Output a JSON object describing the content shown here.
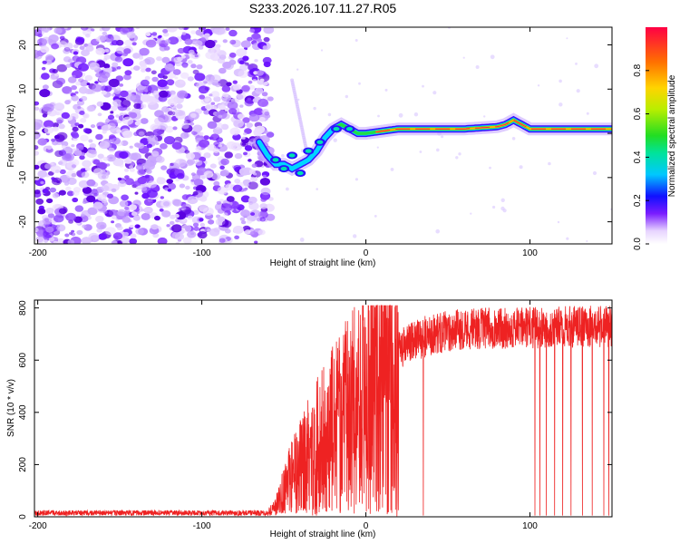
{
  "title": "S233.2026.107.11.27.R05",
  "chart_data": [
    {
      "type": "heatmap",
      "xlabel": "Height of straight line (km)",
      "ylabel": "Frequency (Hz)",
      "xlim": [
        -202,
        150
      ],
      "ylim": [
        -25,
        24
      ],
      "xticks": [
        -200,
        -100,
        0,
        100
      ],
      "yticks": [
        -20,
        -10,
        0,
        10,
        20
      ],
      "ridge": {
        "x": [
          -65,
          -60,
          -55,
          -50,
          -45,
          -40,
          -35,
          -30,
          -25,
          -20,
          -15,
          -10,
          -5,
          0,
          20,
          40,
          60,
          80,
          85,
          90,
          95,
          100,
          120,
          150
        ],
        "y": [
          -2,
          -5,
          -7,
          -7,
          -8,
          -7,
          -6,
          -4,
          -1,
          1,
          2,
          1,
          0,
          0,
          1,
          1,
          1,
          1.5,
          2,
          3,
          2,
          1,
          1,
          1
        ]
      },
      "colorbar": {
        "label": "Normalized spectral amplitude",
        "range": [
          0,
          1
        ],
        "ticks": [
          "0.0",
          "0.2",
          "0.4",
          "0.6",
          "0.8"
        ]
      }
    },
    {
      "type": "line",
      "xlabel": "Height of straight line (km)",
      "ylabel": "SNR (10 * v/v)",
      "xlim": [
        -202,
        150
      ],
      "ylim": [
        0,
        830
      ],
      "xticks": [
        -200,
        -100,
        0,
        100
      ],
      "yticks": [
        0,
        200,
        400,
        600,
        800
      ],
      "color": "#ee2222",
      "profile": {
        "x": [
          -202,
          -60,
          -55,
          -45,
          -35,
          -25,
          -15,
          -5,
          5,
          15,
          25,
          40,
          60,
          150
        ],
        "y": [
          15,
          15,
          40,
          160,
          240,
          320,
          380,
          450,
          520,
          600,
          660,
          700,
          720,
          730
        ]
      }
    }
  ]
}
